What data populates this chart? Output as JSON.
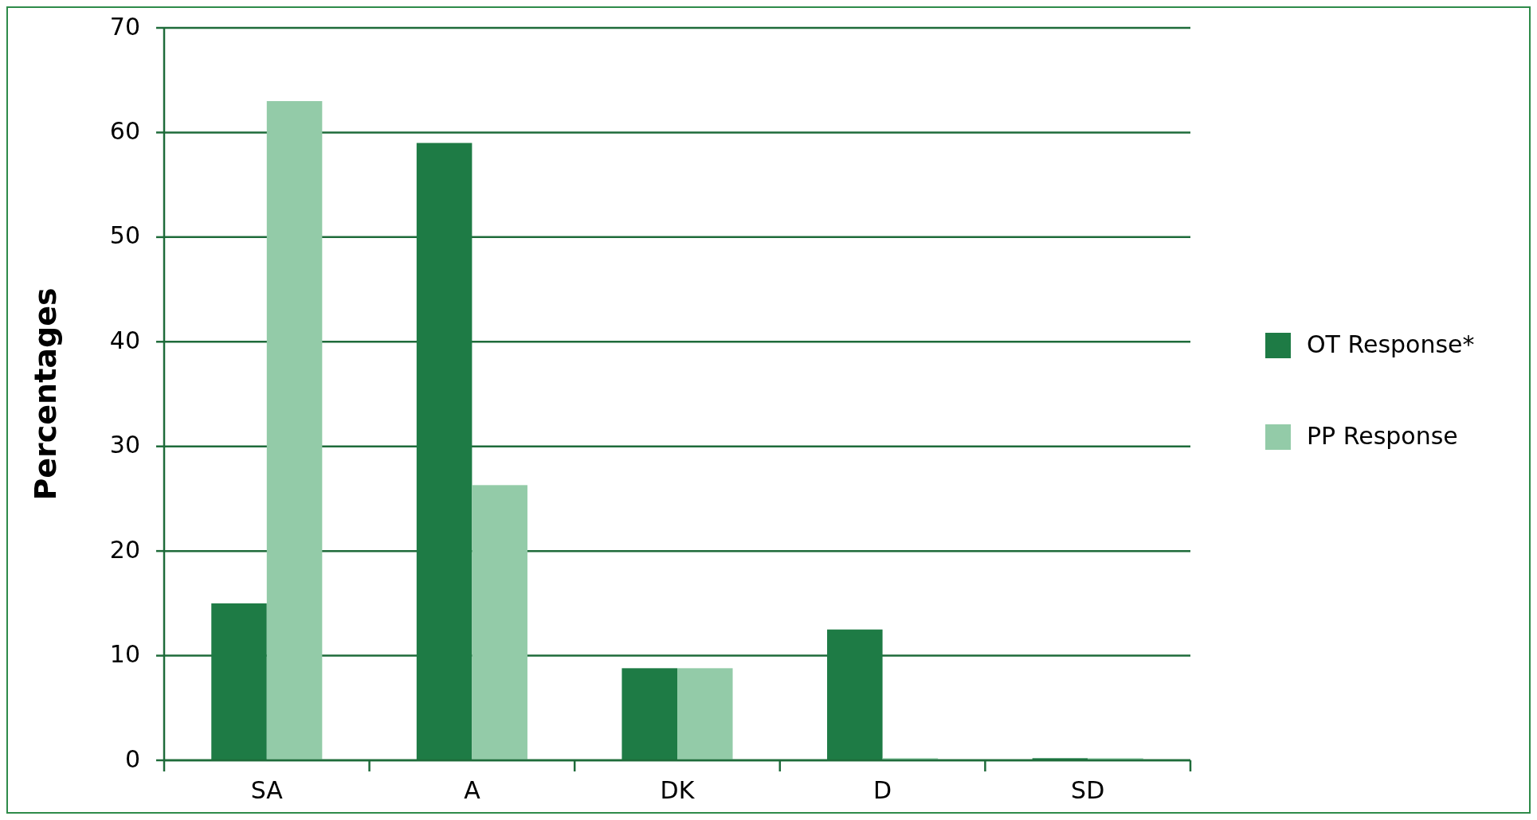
{
  "chart_data": {
    "type": "bar",
    "ylabel": "Percentages",
    "categories": [
      "SA",
      "A",
      "DK",
      "D",
      "SD"
    ],
    "series": [
      {
        "name": "OT Response*",
        "color": "#1e7b45",
        "values": [
          15,
          59,
          8.8,
          12.5,
          0.2
        ]
      },
      {
        "name": "PP Response",
        "color": "#93cba8",
        "values": [
          63,
          26.3,
          8.8,
          0.2,
          0.2
        ]
      }
    ],
    "ylim": [
      0,
      70
    ],
    "yticks": [
      0,
      10,
      20,
      30,
      40,
      50,
      60,
      70
    ],
    "grid": "y",
    "legend": "right"
  }
}
